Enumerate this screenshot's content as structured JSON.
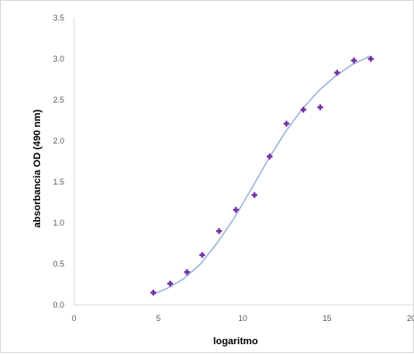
{
  "chart_data": {
    "type": "scatter",
    "title": "",
    "xlabel": "logaritmo",
    "ylabel": "absorbancia OD (490 nm)",
    "xlim": [
      0,
      20
    ],
    "ylim": [
      0,
      3.5
    ],
    "x_ticks": [
      "0",
      "5",
      "10",
      "15",
      "20"
    ],
    "y_ticks": [
      "0.0",
      "0.5",
      "1.0",
      "1.5",
      "2.0",
      "2.5",
      "3.0",
      "3.5"
    ],
    "grid": false,
    "legend": "none",
    "series": [
      {
        "marker_color": "#7030a0",
        "x": [
          4.7,
          5.7,
          6.7,
          7.6,
          8.6,
          9.6,
          10.7,
          11.6,
          12.6,
          13.6,
          14.6,
          15.6,
          16.6,
          17.6
        ],
        "y": [
          0.15,
          0.26,
          0.4,
          0.61,
          0.9,
          1.16,
          1.34,
          1.81,
          2.21,
          2.38,
          2.41,
          2.83,
          2.98,
          3.0
        ]
      }
    ],
    "trendline": {
      "type": "sigmoid",
      "color": "#9bb3db",
      "x": [
        4.7,
        5.5,
        6.5,
        7.5,
        8.5,
        9.5,
        10.5,
        11.5,
        12.5,
        13.5,
        14.5,
        15.5,
        16.5,
        17.5
      ],
      "y": [
        0.13,
        0.2,
        0.32,
        0.5,
        0.76,
        1.06,
        1.41,
        1.77,
        2.1,
        2.38,
        2.61,
        2.79,
        2.93,
        3.03
      ]
    }
  }
}
